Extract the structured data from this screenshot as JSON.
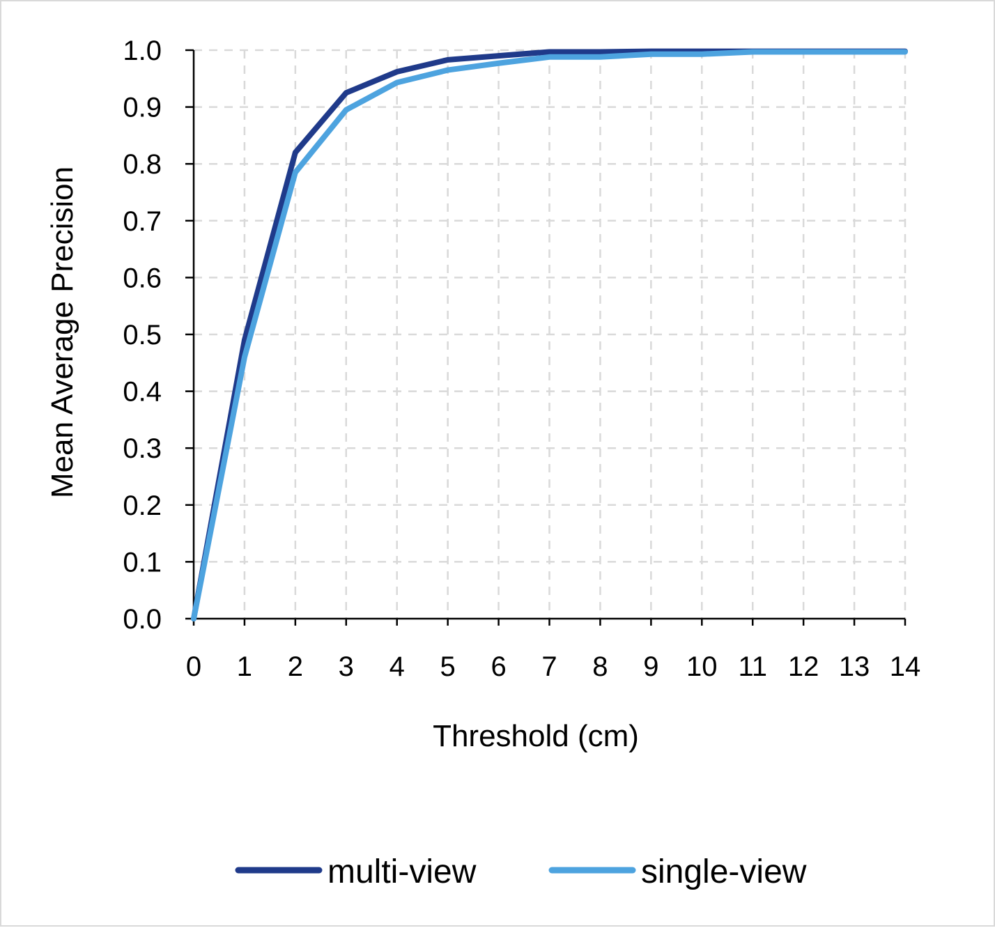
{
  "chart_data": {
    "type": "line",
    "title": "",
    "xlabel": "Threshold (cm)",
    "ylabel": "Mean Average Precision",
    "x": [
      0,
      1,
      2,
      3,
      4,
      5,
      6,
      7,
      8,
      9,
      10,
      11,
      12,
      13,
      14
    ],
    "x_tick_labels": [
      "0",
      "1",
      "2",
      "3",
      "4",
      "5",
      "6",
      "7",
      "8",
      "9",
      "10",
      "11",
      "12",
      "13",
      "14"
    ],
    "y_tick_labels": [
      "0.0",
      "0.1",
      "0.2",
      "0.3",
      "0.4",
      "0.5",
      "0.6",
      "0.7",
      "0.8",
      "0.9",
      "1.0"
    ],
    "xlim": [
      0,
      14
    ],
    "ylim": [
      0,
      1.0
    ],
    "grid": true,
    "legend_position": "bottom",
    "series": [
      {
        "name": "multi-view",
        "color": "#1f3a8a",
        "values": [
          0.0,
          0.49,
          0.82,
          0.925,
          0.962,
          0.983,
          0.99,
          0.997,
          0.997,
          0.998,
          0.998,
          0.998,
          0.998,
          0.998,
          0.998
        ]
      },
      {
        "name": "single-view",
        "color": "#4da3df",
        "values": [
          0.0,
          0.46,
          0.785,
          0.895,
          0.943,
          0.965,
          0.977,
          0.988,
          0.988,
          0.993,
          0.993,
          0.997,
          0.997,
          0.997,
          0.997
        ]
      }
    ],
    "colors": {
      "axis": "#000000",
      "grid": "#d9d9d9",
      "frame": "#d9d9d9"
    }
  }
}
